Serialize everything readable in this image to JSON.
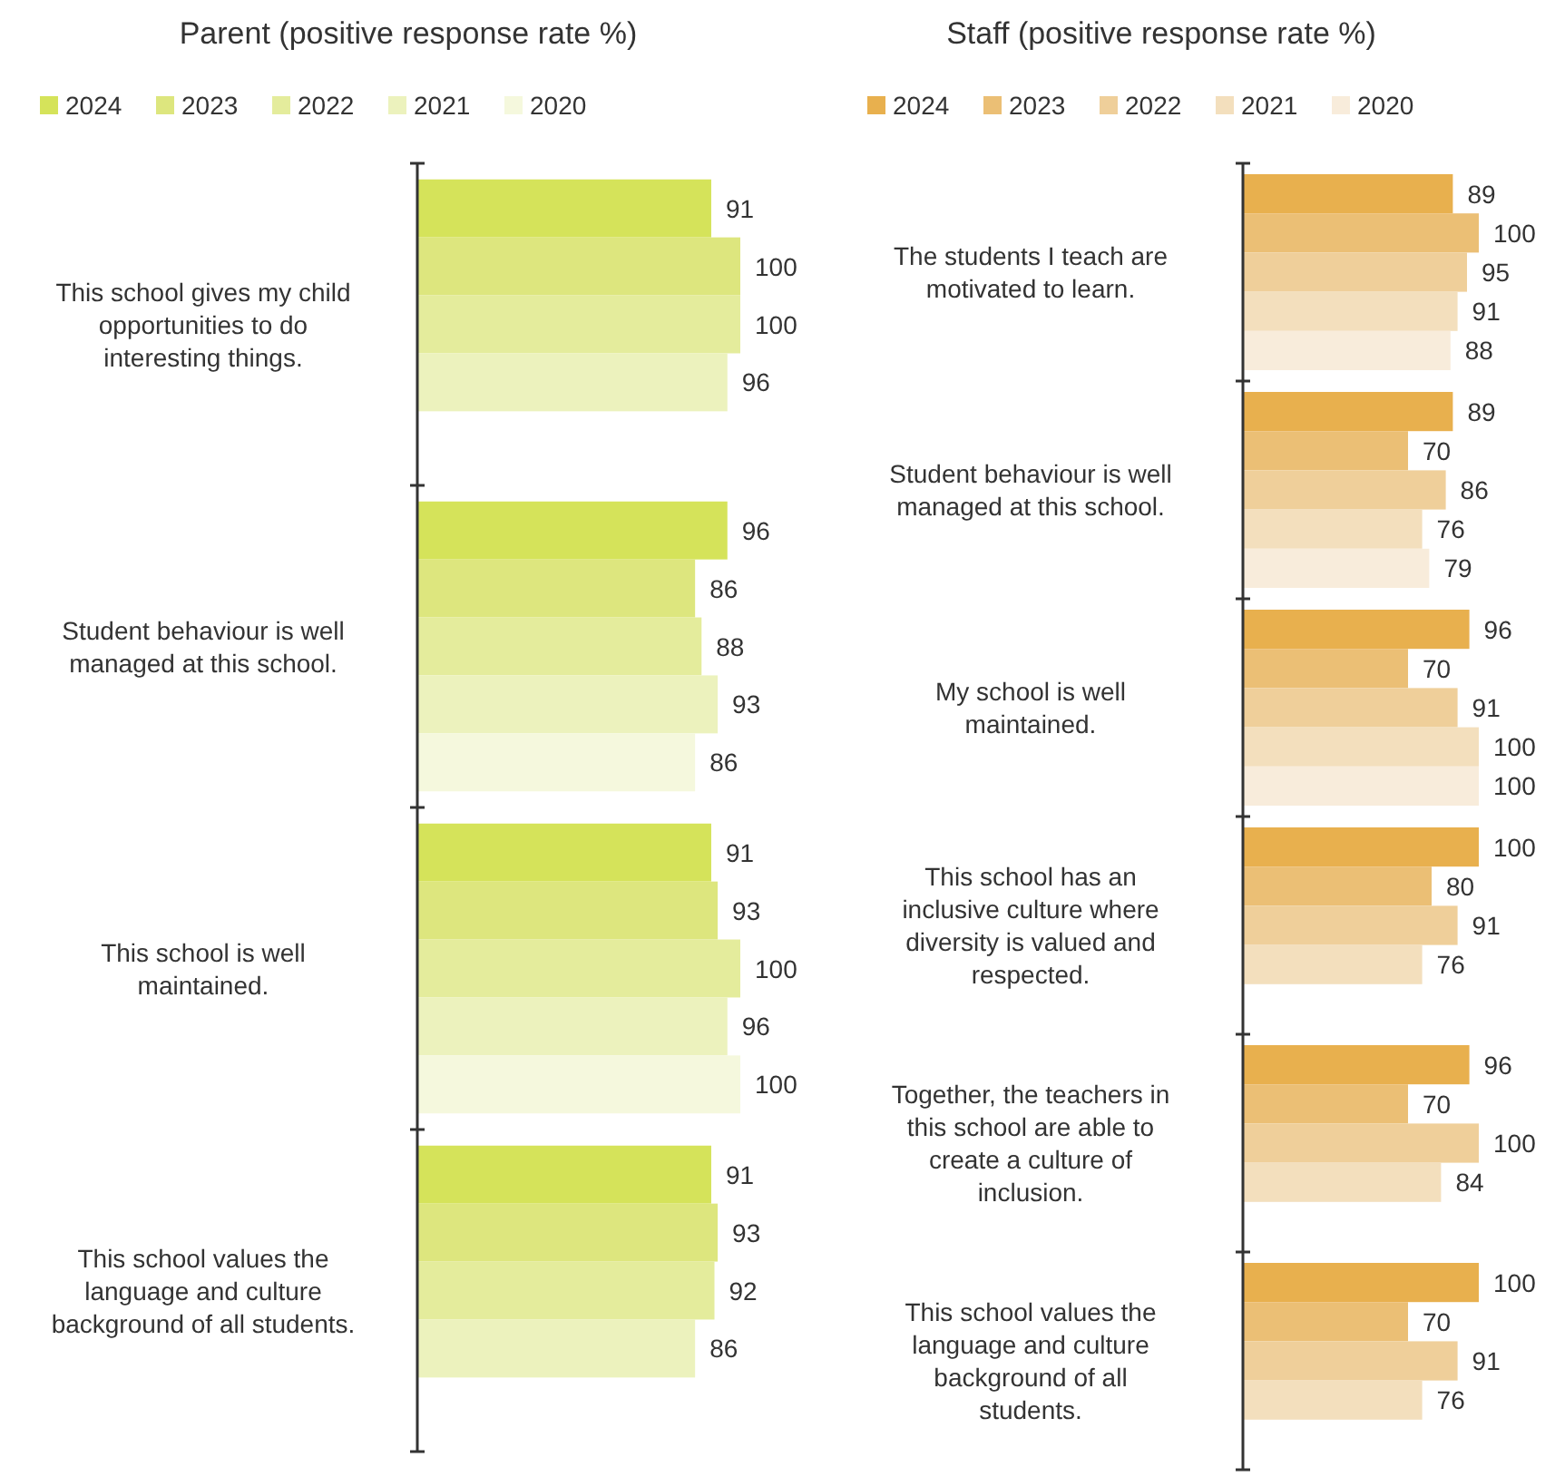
{
  "chart_data": [
    {
      "type": "bar",
      "orientation": "horizontal",
      "title": "Parent (positive response rate %)",
      "categories": [
        "This school gives my child opportunities to do interesting things.",
        "Student behaviour is well managed at this school.",
        "This school is well maintained.",
        "This school values the language and culture background of all students."
      ],
      "series": [
        {
          "name": "2024",
          "color": "#d5e35a",
          "values": [
            91,
            96,
            91,
            91
          ]
        },
        {
          "name": "2023",
          "color": "#dde67e",
          "values": [
            100,
            86,
            93,
            93
          ]
        },
        {
          "name": "2022",
          "color": "#e4ec9c",
          "values": [
            100,
            88,
            100,
            92
          ]
        },
        {
          "name": "2021",
          "color": "#ecf2bd",
          "values": [
            96,
            93,
            96,
            86
          ]
        },
        {
          "name": "2020",
          "color": "#f5f8dd",
          "values": [
            null,
            86,
            100,
            null
          ]
        }
      ],
      "data_labels": true,
      "legend": "top"
    },
    {
      "type": "bar",
      "orientation": "horizontal",
      "title": "Staff (positive response rate %)",
      "categories": [
        "The students I teach are motivated to learn.",
        "Student behaviour is well managed at this school.",
        "My school is well maintained.",
        "This school has an inclusive culture where diversity is valued and respected.",
        "Together, the teachers in this school are able to create a culture of inclusion.",
        "This school values the language and culture background of all students."
      ],
      "series": [
        {
          "name": "2024",
          "color": "#e8b04e",
          "values": [
            89,
            89,
            96,
            100,
            96,
            100
          ]
        },
        {
          "name": "2023",
          "color": "#ebbf75",
          "values": [
            100,
            70,
            70,
            80,
            70,
            70
          ]
        },
        {
          "name": "2022",
          "color": "#efcf9a",
          "values": [
            95,
            86,
            91,
            91,
            100,
            91
          ]
        },
        {
          "name": "2021",
          "color": "#f3dfbd",
          "values": [
            91,
            76,
            100,
            76,
            84,
            76
          ]
        },
        {
          "name": "2020",
          "color": "#f8ecdb",
          "values": [
            88,
            79,
            100,
            null,
            null,
            null
          ]
        }
      ],
      "data_labels": true,
      "legend": "top"
    }
  ]
}
